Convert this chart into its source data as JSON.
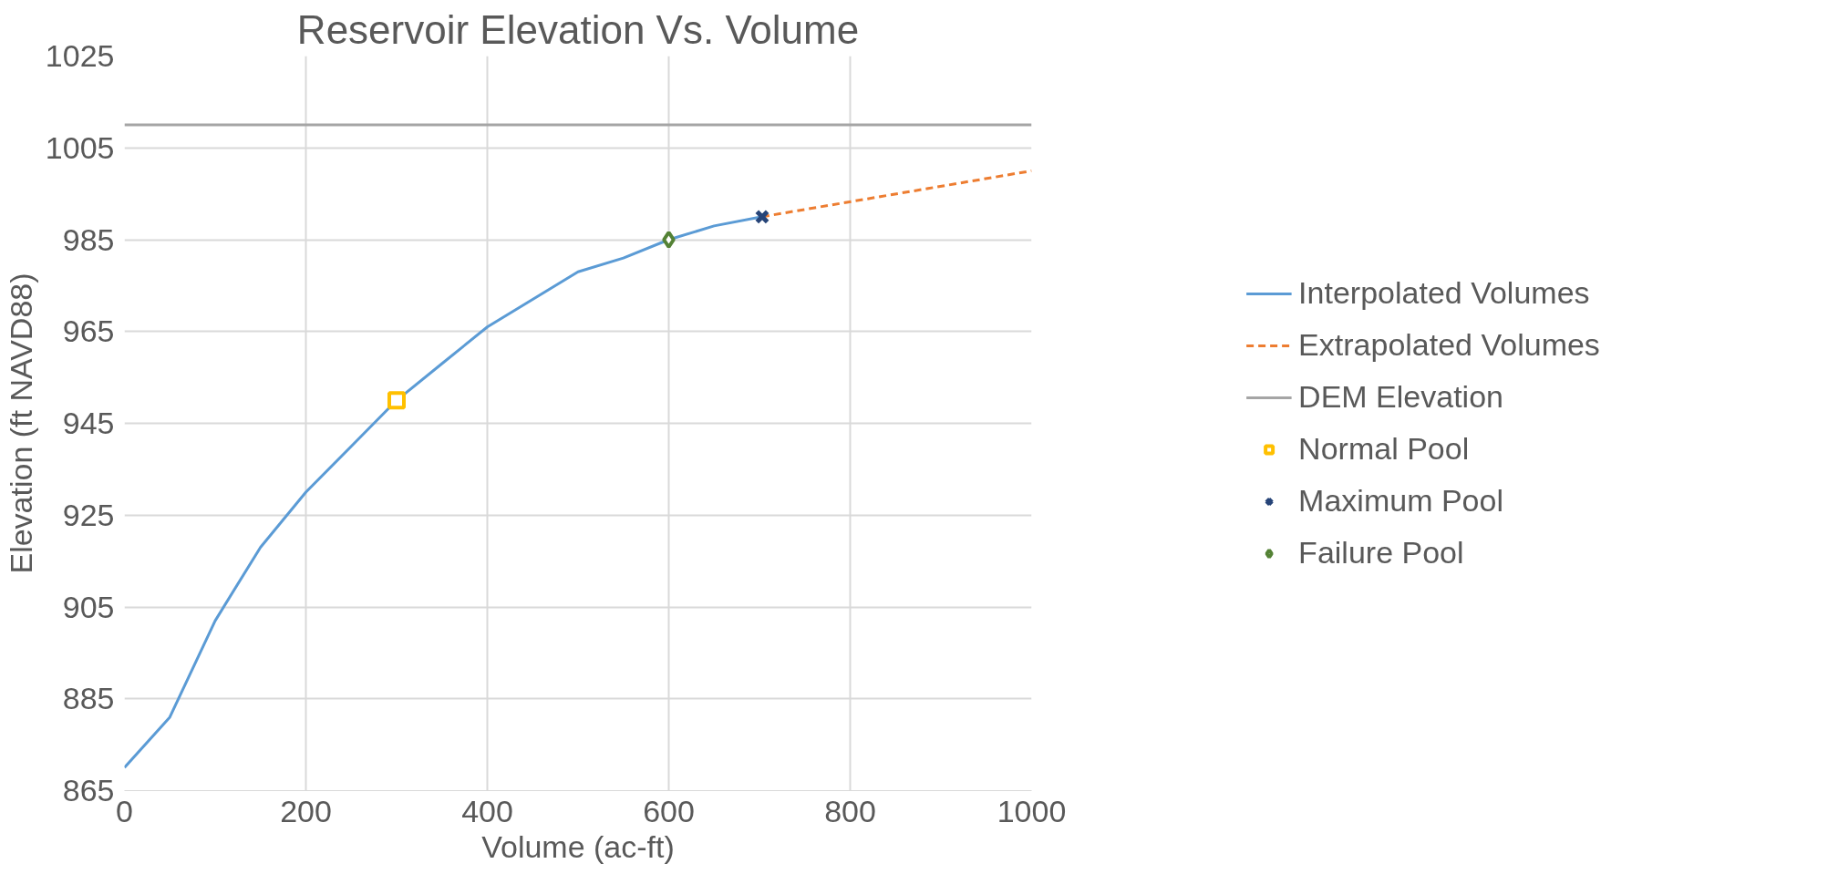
{
  "chart_data": {
    "type": "line",
    "title": "Reservoir Elevation Vs. Volume",
    "xlabel": "Volume (ac-ft)",
    "ylabel": "Elevation (ft NAVD88)",
    "xlim": [
      0,
      1000
    ],
    "xticks": [
      0,
      200,
      400,
      600,
      800,
      1000
    ],
    "ylim": [
      865,
      1025
    ],
    "yticks": [
      865,
      885,
      905,
      925,
      945,
      965,
      985,
      1005,
      1025
    ],
    "grid": true,
    "legend": "right",
    "series": [
      {
        "name": "Interpolated Volumes",
        "color": "#5b9bd5",
        "line_style": "solid",
        "marker": "none",
        "x": [
          0,
          50,
          100,
          150,
          200,
          250,
          300,
          350,
          400,
          450,
          500,
          550,
          600,
          650,
          703
        ],
        "values": [
          870,
          881,
          902,
          918,
          930,
          940,
          950,
          958,
          966,
          972,
          978,
          981,
          985,
          988,
          990
        ]
      },
      {
        "name": "Extrapolated Volumes",
        "color": "#ed7d31",
        "line_style": "dashed",
        "marker": "none",
        "x": [
          703,
          1000
        ],
        "values": [
          990,
          1000
        ]
      },
      {
        "name": "DEM Elevation",
        "color": "#a5a5a5",
        "line_style": "solid",
        "marker": "none",
        "x": [
          0,
          1000
        ],
        "values": [
          1010,
          1010
        ]
      },
      {
        "name": "Normal Pool",
        "type": "scatter",
        "color": "#ffc000",
        "marker": "square",
        "x": [
          300
        ],
        "values": [
          950
        ]
      },
      {
        "name": "Maximum Pool",
        "type": "scatter",
        "color": "#264478",
        "marker": "cross",
        "x": [
          703
        ],
        "values": [
          990
        ]
      },
      {
        "name": "Failure Pool",
        "type": "scatter",
        "color": "#548235",
        "marker": "diamond",
        "x": [
          600
        ],
        "values": [
          985
        ]
      }
    ]
  }
}
